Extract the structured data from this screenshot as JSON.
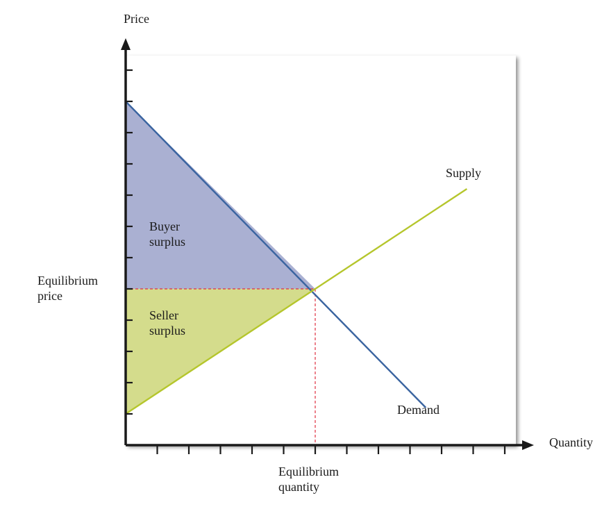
{
  "chart_data": {
    "type": "line",
    "title": "",
    "xlabel": "Quantity",
    "ylabel": "Price",
    "xlim": [
      0,
      13
    ],
    "ylim": [
      0,
      12
    ],
    "x_ticks": [
      1,
      2,
      3,
      4,
      5,
      6,
      7,
      8,
      9,
      10,
      11,
      12
    ],
    "y_ticks": [
      1,
      2,
      3,
      4,
      5,
      6,
      7,
      8,
      9,
      10,
      11,
      12
    ],
    "grid": false,
    "legend": "none",
    "series": [
      {
        "name": "Demand",
        "x": [
          0,
          9.5
        ],
        "y": [
          11,
          1.2
        ],
        "color": "#3a64a0"
      },
      {
        "name": "Supply",
        "x": [
          0,
          10.8
        ],
        "y": [
          1,
          8.2
        ],
        "color": "#b5c62c"
      }
    ],
    "equilibrium": {
      "quantity": 6,
      "price": 5
    },
    "regions": [
      {
        "name": "Buyer surplus",
        "label": "Buyer\nsurplus",
        "vertices": [
          [
            0,
            11
          ],
          [
            6,
            5
          ],
          [
            0,
            5
          ]
        ],
        "color": "#aab0d2"
      },
      {
        "name": "Seller surplus",
        "label": "Seller\nsurplus",
        "vertices": [
          [
            0,
            5
          ],
          [
            6,
            5
          ],
          [
            0,
            1
          ]
        ],
        "color": "#d4dc8c"
      }
    ],
    "annotations": {
      "equilibrium_price": "Equilibrium\nprice",
      "equilibrium_quantity": "Equilibrium\nquantity",
      "supply": "Supply",
      "demand": "Demand"
    },
    "guide_line_color": "#e03040",
    "axis_color": "#1a1a1a"
  }
}
